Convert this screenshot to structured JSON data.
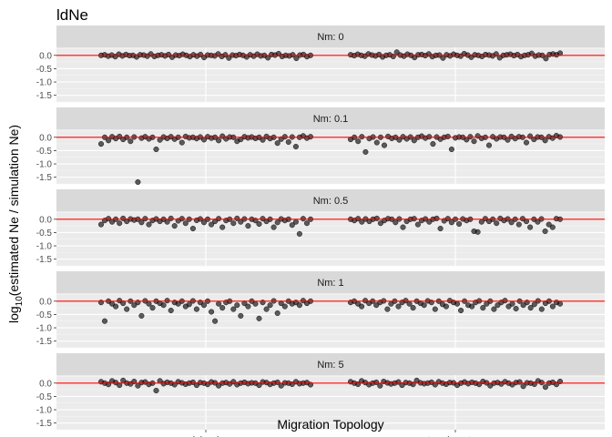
{
  "chart_data": {
    "type": "scatter",
    "title": "ldNe",
    "xlabel": "Migration Topology",
    "ylabel_prefix": "log",
    "ylabel_subscript": "10",
    "ylabel_rest": "(estimated Ne / simulation Ne)",
    "categories": [
      "island",
      "stepping.stone"
    ],
    "ylim": [
      -1.75,
      0.3
    ],
    "yticks": [
      0.0,
      -0.5,
      -1.0,
      -1.5
    ],
    "ytick_labels": [
      "0.0",
      "-0.5",
      "-1.0",
      "-1.5"
    ],
    "reference_line_y": 0.0,
    "reference_line_color": "#ff0000",
    "point_color": "#000000",
    "panel_background": "#ebebeb",
    "strip_background": "#d9d9d9",
    "grid": true,
    "panels": [
      {
        "label": "Nm: 0",
        "island": [
          0.0,
          0.02,
          -0.03,
          0.01,
          -0.05,
          0.04,
          -0.02,
          0.03,
          -0.01,
          0.0,
          -0.06,
          0.02,
          0.01,
          -0.03,
          0.05,
          -0.04,
          0.0,
          0.02,
          -0.02,
          0.03,
          -0.07,
          0.01,
          -0.01,
          0.04,
          0.0,
          -0.05,
          0.02,
          -0.03,
          0.03,
          -0.08,
          0.01,
          0.0,
          -0.02,
          0.05,
          -0.04,
          0.02,
          -0.1,
          0.01,
          -0.01,
          0.03,
          0.0,
          -0.06,
          0.02,
          -0.03,
          0.04,
          -0.02,
          0.0,
          -0.09,
          0.03,
          0.01,
          0.06,
          -0.04,
          0.0,
          -0.02,
          0.02,
          -0.11,
          0.01,
          0.03,
          -0.05,
          0.0
        ],
        "stepping.stone": [
          0.02,
          -0.01,
          0.04,
          0.0,
          -0.03,
          0.05,
          0.01,
          -0.02,
          0.03,
          -0.06,
          0.0,
          0.02,
          -0.04,
          0.12,
          0.01,
          -0.03,
          0.04,
          0.0,
          -0.08,
          0.02,
          0.03,
          -0.01,
          0.05,
          -0.05,
          0.0,
          0.01,
          -0.1,
          0.02,
          -0.02,
          0.04,
          0.0,
          -0.03,
          0.06,
          0.01,
          -0.07,
          0.02,
          0.0,
          -0.04,
          0.03,
          0.01,
          -0.02,
          0.05,
          -0.09,
          0.0,
          0.02,
          0.04,
          -0.01,
          0.03,
          -0.05,
          0.0,
          0.02,
          0.07,
          -0.03,
          0.01,
          0.0,
          -0.12,
          0.03,
          0.05,
          0.02,
          0.08
        ]
      },
      {
        "label": "Nm: 0.1",
        "island": [
          -0.25,
          0.0,
          -0.12,
          0.02,
          -0.05,
          0.03,
          -0.08,
          0.0,
          -0.15,
          0.01,
          -1.68,
          -0.03,
          0.02,
          -0.06,
          0.0,
          -0.45,
          -0.1,
          0.01,
          -0.04,
          0.02,
          -0.07,
          0.0,
          -0.2,
          0.03,
          -0.02,
          0.0,
          -0.05,
          0.01,
          -0.09,
          0.02,
          -0.03,
          0.0,
          -0.12,
          0.04,
          -0.06,
          0.01,
          0.0,
          -0.15,
          -0.08,
          0.02,
          -0.02,
          0.01,
          -0.04,
          0.0,
          -0.1,
          0.03,
          -0.05,
          0.0,
          -0.22,
          -0.07,
          0.02,
          -0.18,
          0.01,
          -0.35,
          0.0,
          0.05,
          -0.03,
          0.02
        ],
        "stepping.stone": [
          -0.08,
          0.0,
          -0.15,
          0.02,
          -0.55,
          -0.05,
          0.01,
          -0.2,
          0.0,
          -0.3,
          0.03,
          -0.04,
          0.0,
          -0.1,
          0.02,
          -0.06,
          0.01,
          -0.12,
          0.0,
          0.04,
          -0.03,
          0.02,
          -0.25,
          0.01,
          -0.07,
          0.0,
          0.03,
          -0.45,
          -0.02,
          0.01,
          0.0,
          -0.09,
          0.02,
          -0.15,
          0.05,
          -0.04,
          0.0,
          -0.3,
          0.02,
          -0.06,
          0.01,
          0.0,
          -0.1,
          0.03,
          -0.05,
          0.02,
          0.0,
          -0.2,
          0.04,
          -0.08,
          0.01,
          0.0,
          -0.12,
          0.02,
          -0.03,
          0.06,
          0.01
        ]
      },
      {
        "label": "Nm: 0.5",
        "island": [
          -0.2,
          -0.05,
          0.02,
          -0.1,
          0.0,
          -0.15,
          0.03,
          -0.08,
          0.01,
          -0.03,
          0.0,
          -0.12,
          0.02,
          -0.2,
          -0.05,
          0.01,
          -0.08,
          0.0,
          -0.1,
          0.03,
          -0.25,
          -0.06,
          0.02,
          -0.15,
          0.0,
          -0.35,
          -0.04,
          0.01,
          -0.12,
          0.0,
          -0.2,
          -0.08,
          0.02,
          -0.3,
          -0.05,
          0.0,
          -0.15,
          0.03,
          -0.1,
          0.01,
          -0.25,
          0.0,
          -0.05,
          -0.18,
          0.02,
          -0.08,
          0.0,
          -0.3,
          -0.12,
          0.01,
          -0.05,
          0.0,
          -0.22,
          -0.1,
          -0.55,
          0.02,
          -0.15,
          0.0
        ],
        "stepping.stone": [
          0.0,
          -0.05,
          0.02,
          -0.1,
          0.01,
          -0.08,
          0.0,
          0.03,
          -0.15,
          -0.05,
          0.02,
          0.0,
          -0.12,
          0.01,
          -0.3,
          -0.08,
          0.0,
          0.02,
          -0.2,
          -0.05,
          0.01,
          -0.1,
          0.0,
          0.03,
          -0.35,
          -0.06,
          0.02,
          -0.12,
          0.0,
          -0.18,
          0.01,
          -0.05,
          0.0,
          -0.45,
          -0.48,
          -0.1,
          0.02,
          -0.08,
          0.0,
          -0.15,
          0.03,
          -0.05,
          0.01,
          -0.12,
          0.0,
          -0.2,
          0.02,
          -0.08,
          -0.3,
          0.0,
          -0.1,
          0.01,
          -0.45,
          -0.2,
          -0.3,
          0.02,
          0.0
        ]
      },
      {
        "label": "Nm: 1",
        "island": [
          -0.05,
          -0.75,
          0.0,
          -0.1,
          -0.2,
          0.02,
          -0.08,
          -0.3,
          0.0,
          -0.15,
          -0.05,
          -0.55,
          0.01,
          -0.1,
          -0.25,
          0.0,
          -0.08,
          -0.15,
          0.02,
          -0.35,
          -0.05,
          -0.1,
          0.0,
          -0.2,
          -0.12,
          0.01,
          -0.3,
          -0.05,
          -0.15,
          0.0,
          -0.4,
          -0.75,
          -0.1,
          -0.25,
          -0.05,
          0.0,
          -0.3,
          -0.15,
          -0.55,
          -0.08,
          -0.2,
          0.0,
          -0.1,
          -0.65,
          -0.05,
          -0.3,
          -0.15,
          0.01,
          -0.45,
          -0.08,
          -0.2,
          0.0,
          -0.1,
          -0.05,
          -0.15,
          0.02,
          -0.08,
          0.0
        ],
        "stepping.stone": [
          -0.05,
          0.0,
          -0.1,
          -0.2,
          0.02,
          -0.08,
          0.0,
          -0.15,
          -0.05,
          0.01,
          -0.3,
          -0.1,
          0.0,
          -0.2,
          -0.05,
          0.02,
          -0.1,
          -0.25,
          0.0,
          -0.08,
          -0.15,
          0.01,
          -0.05,
          -0.3,
          0.0,
          -0.12,
          -0.2,
          0.02,
          -0.05,
          -0.1,
          -0.35,
          0.0,
          -0.15,
          -0.2,
          -0.05,
          0.01,
          -0.25,
          -0.1,
          0.0,
          -0.3,
          -0.15,
          -0.05,
          0.02,
          -0.2,
          -0.1,
          -0.28,
          0.0,
          -0.15,
          -0.05,
          -0.25,
          -0.12,
          0.01,
          -0.3,
          -0.08,
          0.0,
          -0.2,
          -0.05,
          -0.1
        ]
      },
      {
        "label": "Nm: 5",
        "island": [
          0.05,
          0.0,
          -0.05,
          0.08,
          0.02,
          -0.08,
          0.1,
          0.0,
          -0.03,
          0.06,
          -0.1,
          0.02,
          0.04,
          -0.05,
          0.0,
          -0.28,
          0.08,
          -0.02,
          0.03,
          0.0,
          -0.06,
          0.05,
          0.01,
          -0.04,
          0.0,
          0.03,
          -0.08,
          0.02,
          0.0,
          -0.05,
          0.04,
          0.01,
          -0.1,
          0.0,
          0.02,
          -0.03,
          0.05,
          -0.06,
          0.0,
          0.03,
          -0.02,
          0.01,
          0.0,
          -0.08,
          0.04,
          0.02,
          -0.05,
          0.0,
          0.03,
          -0.1,
          0.01,
          0.0,
          -0.04,
          0.05,
          -0.02,
          0.0,
          0.02,
          -0.06
        ],
        "stepping.stone": [
          0.05,
          0.0,
          -0.04,
          0.08,
          0.02,
          -0.06,
          0.0,
          0.03,
          -0.1,
          0.06,
          0.01,
          -0.03,
          0.0,
          0.04,
          -0.08,
          0.02,
          0.0,
          -0.05,
          0.1,
          0.01,
          -0.02,
          0.0,
          0.03,
          -0.06,
          0.05,
          0.0,
          -0.04,
          0.02,
          0.01,
          -0.08,
          0.0,
          0.04,
          -0.02,
          0.03,
          0.0,
          -0.05,
          0.06,
          0.01,
          -0.1,
          0.0,
          0.02,
          -0.03,
          0.05,
          0.0,
          -0.06,
          0.02,
          0.04,
          -0.12,
          0.01,
          0.0,
          -0.04,
          0.08,
          0.02,
          -0.15,
          0.0,
          0.03,
          -0.05,
          0.06
        ]
      }
    ]
  }
}
